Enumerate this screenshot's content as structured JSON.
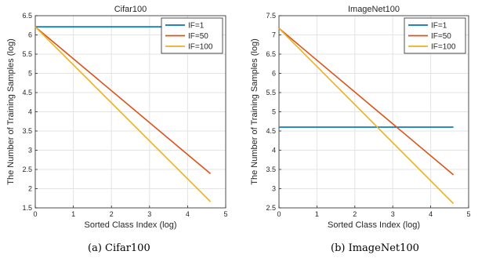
{
  "colors": {
    "IF=1": "#0072BD",
    "IF=50": "#D95319",
    "IF=100": "#EDB120"
  },
  "chart_data": [
    {
      "type": "line",
      "title": "Cifar100",
      "xlabel": "Sorted Class Index (log)",
      "ylabel": "The Number of Training Samples (log)",
      "xlim": [
        0,
        5
      ],
      "ylim": [
        1.5,
        6.5
      ],
      "xticks": [
        "0",
        "1",
        "2",
        "3",
        "4",
        "5"
      ],
      "yticks": [
        "1.5",
        "2",
        "2.5",
        "3",
        "3.5",
        "4",
        "4.5",
        "5",
        "5.5",
        "6",
        "6.5"
      ],
      "grid": true,
      "legend_position": "top-right",
      "series": [
        {
          "name": "IF=1",
          "x": [
            0,
            4.6
          ],
          "y": [
            6.21,
            6.21
          ]
        },
        {
          "name": "IF=50",
          "x": [
            0,
            4.6
          ],
          "y": [
            6.21,
            2.39
          ]
        },
        {
          "name": "IF=100",
          "x": [
            0,
            4.6
          ],
          "y": [
            6.21,
            1.66
          ]
        }
      ]
    },
    {
      "type": "line",
      "title": "ImageNet100",
      "xlabel": "Sorted Class Index (log)",
      "ylabel": "The Number of Training Samples (log)",
      "xlim": [
        0,
        5
      ],
      "ylim": [
        2.5,
        7.5
      ],
      "xticks": [
        "0",
        "1",
        "2",
        "3",
        "4",
        "5"
      ],
      "yticks": [
        "2.5",
        "3",
        "3.5",
        "4",
        "4.5",
        "5",
        "5.5",
        "6",
        "6.5",
        "7",
        "7.5"
      ],
      "grid": true,
      "legend_position": "top-right",
      "series": [
        {
          "name": "IF=1",
          "x": [
            0,
            4.6
          ],
          "y": [
            4.6,
            4.6
          ]
        },
        {
          "name": "IF=50",
          "x": [
            0,
            4.6
          ],
          "y": [
            7.17,
            3.36
          ]
        },
        {
          "name": "IF=100",
          "x": [
            0,
            4.6
          ],
          "y": [
            7.17,
            2.61
          ]
        }
      ]
    }
  ],
  "captions": {
    "a": "(a)  Cifar100",
    "b": "(b)  ImageNet100"
  }
}
